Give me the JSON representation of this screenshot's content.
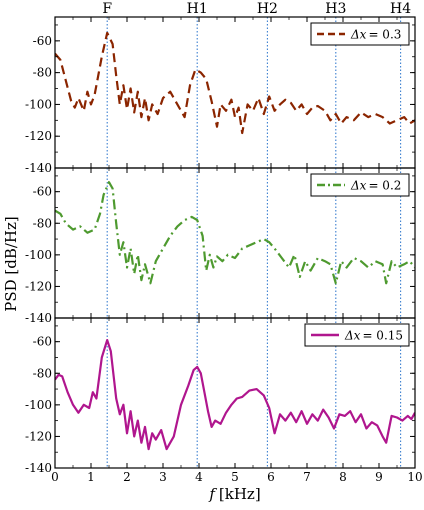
{
  "chart_data": {
    "type": "line",
    "xlabel": "f [kHz]",
    "xlabel_symbol": "f",
    "xlabel_unit": "[kHz]",
    "ylabel": "PSD [dB/Hz]",
    "xlim": [
      0,
      10
    ],
    "x_ticks": [
      0,
      1,
      2,
      3,
      4,
      5,
      6,
      7,
      8,
      9,
      10
    ],
    "harmonic_markers": [
      {
        "label": "F",
        "x": 1.45
      },
      {
        "label": "H1",
        "x": 3.95
      },
      {
        "label": "H2",
        "x": 5.9
      },
      {
        "label": "H3",
        "x": 7.8
      },
      {
        "label": "H4",
        "x": 9.6
      }
    ],
    "panels": [
      {
        "ylim": [
          -140,
          -45
        ],
        "y_ticks": [
          -60,
          -80,
          -100,
          -120,
          -140
        ],
        "series": [
          {
            "name": "Δx = 0.3",
            "legend_symbol": "Δx",
            "legend_value": "= 0.3",
            "color": "#8B2500",
            "style": "dashed",
            "x": [
              0,
              0.15,
              0.3,
              0.45,
              0.55,
              0.65,
              0.8,
              0.9,
              1.0,
              1.1,
              1.2,
              1.3,
              1.45,
              1.6,
              1.7,
              1.8,
              1.9,
              2.0,
              2.1,
              2.2,
              2.3,
              2.4,
              2.5,
              2.6,
              2.7,
              2.85,
              3.0,
              3.2,
              3.4,
              3.6,
              3.75,
              3.9,
              4.05,
              4.2,
              4.35,
              4.5,
              4.6,
              4.75,
              4.9,
              5.0,
              5.1,
              5.2,
              5.35,
              5.5,
              5.65,
              5.8,
              5.95,
              6.1,
              6.25,
              6.4,
              6.55,
              6.7,
              6.85,
              7.0,
              7.15,
              7.3,
              7.5,
              7.65,
              7.8,
              7.95,
              8.1,
              8.3,
              8.5,
              8.7,
              8.9,
              9.1,
              9.3,
              9.5,
              9.7,
              9.85,
              10.0
            ],
            "y": [
              -68,
              -72,
              -85,
              -98,
              -102,
              -96,
              -104,
              -92,
              -100,
              -94,
              -82,
              -70,
              -55,
              -62,
              -82,
              -100,
              -88,
              -103,
              -90,
              -105,
              -92,
              -108,
              -96,
              -110,
              -100,
              -106,
              -96,
              -92,
              -100,
              -108,
              -88,
              -78,
              -80,
              -84,
              -98,
              -114,
              -100,
              -104,
              -97,
              -108,
              -102,
              -118,
              -100,
              -104,
              -96,
              -106,
              -95,
              -104,
              -100,
              -97,
              -99,
              -104,
              -100,
              -106,
              -102,
              -101,
              -104,
              -110,
              -106,
              -112,
              -108,
              -110,
              -105,
              -108,
              -106,
              -108,
              -112,
              -110,
              -108,
              -112,
              -110
            ]
          }
        ]
      },
      {
        "ylim": [
          -140,
          -45
        ],
        "y_ticks": [
          -60,
          -80,
          -100,
          -120,
          -140
        ],
        "series": [
          {
            "name": "Δx = 0.2",
            "legend_symbol": "Δx",
            "legend_value": "= 0.2",
            "color": "#4E9A2F",
            "style": "dashdot",
            "x": [
              0,
              0.15,
              0.3,
              0.5,
              0.7,
              0.9,
              1.1,
              1.25,
              1.35,
              1.5,
              1.6,
              1.7,
              1.8,
              1.9,
              2.0,
              2.1,
              2.2,
              2.3,
              2.4,
              2.5,
              2.65,
              2.8,
              3.0,
              3.2,
              3.4,
              3.6,
              3.8,
              3.95,
              4.1,
              4.2,
              4.3,
              4.4,
              4.5,
              4.65,
              4.8,
              5.0,
              5.2,
              5.4,
              5.6,
              5.8,
              5.95,
              6.1,
              6.3,
              6.5,
              6.65,
              6.8,
              6.95,
              7.1,
              7.3,
              7.5,
              7.65,
              7.8,
              7.95,
              8.1,
              8.3,
              8.5,
              8.7,
              8.9,
              9.1,
              9.2,
              9.35,
              9.5,
              9.7,
              9.85,
              10.0
            ],
            "y": [
              -72,
              -74,
              -80,
              -84,
              -82,
              -86,
              -84,
              -74,
              -62,
              -54,
              -58,
              -80,
              -100,
              -92,
              -108,
              -96,
              -112,
              -100,
              -116,
              -106,
              -118,
              -104,
              -96,
              -88,
              -82,
              -78,
              -76,
              -78,
              -88,
              -110,
              -100,
              -108,
              -101,
              -104,
              -100,
              -102,
              -96,
              -94,
              -92,
              -90,
              -92,
              -96,
              -102,
              -108,
              -100,
              -114,
              -104,
              -110,
              -102,
              -104,
              -106,
              -118,
              -104,
              -108,
              -102,
              -104,
              -108,
              -104,
              -106,
              -118,
              -104,
              -108,
              -106,
              -104,
              -108
            ]
          }
        ]
      },
      {
        "ylim": [
          -140,
          -45
        ],
        "y_ticks": [
          -60,
          -80,
          -100,
          -120,
          -140
        ],
        "series": [
          {
            "name": "Δx = 0.15",
            "legend_symbol": "Δx",
            "legend_value": "= 0.15",
            "color": "#B0168E",
            "style": "solid",
            "x": [
              0,
              0.1,
              0.2,
              0.35,
              0.5,
              0.65,
              0.8,
              0.95,
              1.05,
              1.15,
              1.3,
              1.45,
              1.55,
              1.7,
              1.8,
              1.9,
              2.0,
              2.1,
              2.2,
              2.3,
              2.4,
              2.5,
              2.6,
              2.7,
              2.8,
              2.95,
              3.1,
              3.3,
              3.5,
              3.7,
              3.85,
              3.95,
              4.05,
              4.15,
              4.25,
              4.35,
              4.45,
              4.6,
              4.75,
              4.9,
              5.05,
              5.2,
              5.4,
              5.6,
              5.8,
              5.95,
              6.1,
              6.25,
              6.4,
              6.55,
              6.7,
              6.85,
              7.0,
              7.15,
              7.3,
              7.45,
              7.6,
              7.75,
              7.9,
              8.05,
              8.2,
              8.35,
              8.5,
              8.65,
              8.8,
              8.95,
              9.1,
              9.2,
              9.35,
              9.5,
              9.65,
              9.8,
              9.9,
              10.0
            ],
            "y": [
              -84,
              -81,
              -82,
              -92,
              -100,
              -105,
              -100,
              -102,
              -92,
              -96,
              -70,
              -59,
              -66,
              -96,
              -106,
              -100,
              -118,
              -104,
              -120,
              -110,
              -124,
              -114,
              -128,
              -118,
              -122,
              -116,
              -128,
              -120,
              -100,
              -88,
              -78,
              -76,
              -80,
              -92,
              -104,
              -114,
              -110,
              -112,
              -105,
              -100,
              -96,
              -95,
              -91,
              -90,
              -94,
              -102,
              -118,
              -106,
              -110,
              -105,
              -111,
              -104,
              -112,
              -106,
              -110,
              -103,
              -108,
              -115,
              -106,
              -107,
              -104,
              -111,
              -106,
              -115,
              -111,
              -113,
              -120,
              -124,
              -107,
              -108,
              -110,
              -107,
              -109,
              -105
            ]
          }
        ]
      }
    ]
  }
}
